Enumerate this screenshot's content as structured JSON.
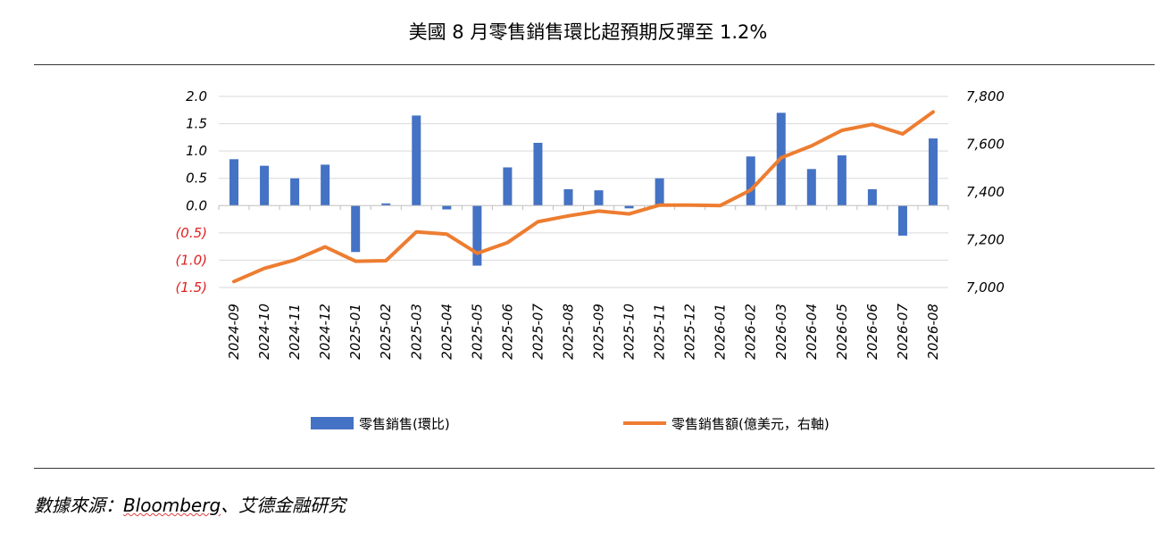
{
  "page": {
    "title": "美國 8 月零售銷售環比超預期反彈至 1.2%",
    "source_prefix": "數據來源：",
    "source_brand": "Bloomberg",
    "source_suffix": "、艾德金融研究"
  },
  "colors": {
    "bar": "#4472c4",
    "line": "#ed7d31",
    "negative_tick": "#e02020",
    "grid": "#d9d9d9"
  },
  "chart_data": {
    "type": "bar",
    "categories": [
      "2024-09",
      "2024-10",
      "2024-11",
      "2024-12",
      "2025-01",
      "2025-02",
      "2025-03",
      "2025-04",
      "2025-05",
      "2025-06",
      "2025-07",
      "2025-08",
      "2025-09",
      "2025-10",
      "2025-11",
      "2025-12",
      "2026-01",
      "2026-02",
      "2026-03",
      "2026-04",
      "2026-05",
      "2026-06",
      "2026-07",
      "2026-08"
    ],
    "series": [
      {
        "name": "零售銷售(環比)",
        "type": "bar",
        "axis": "left",
        "values": [
          0.85,
          0.73,
          0.5,
          0.75,
          -0.85,
          0.04,
          1.65,
          -0.07,
          -1.1,
          0.7,
          1.15,
          0.3,
          0.28,
          -0.05,
          0.5,
          0.0,
          0.0,
          0.9,
          1.7,
          0.67,
          0.92,
          0.3,
          -0.55,
          1.23
        ]
      },
      {
        "name": "零售銷售額(億美元，右軸)",
        "type": "line",
        "axis": "right",
        "values": [
          7025,
          7080,
          7115,
          7170,
          7110,
          7112,
          7233,
          7223,
          7143,
          7188,
          7275,
          7300,
          7320,
          7308,
          7345,
          7345,
          7343,
          7408,
          7543,
          7593,
          7658,
          7683,
          7643,
          7735
        ]
      }
    ],
    "y_left": {
      "range": [
        -1.5,
        2.0
      ],
      "ticks": [
        2.0,
        1.5,
        1.0,
        0.5,
        0.0,
        -0.5,
        -1.0,
        -1.5
      ],
      "tick_labels": [
        "2.0",
        "1.5",
        "1.0",
        "0.5",
        "0.0",
        "(0.5)",
        "(1.0)",
        "(1.5)"
      ]
    },
    "y_right": {
      "range": [
        7000,
        7800
      ],
      "ticks": [
        7800,
        7600,
        7400,
        7200,
        7000
      ],
      "tick_labels": [
        "7,800",
        "7,600",
        "7,400",
        "7,200",
        "7,000"
      ]
    },
    "grid": true,
    "legend": "bottom"
  }
}
